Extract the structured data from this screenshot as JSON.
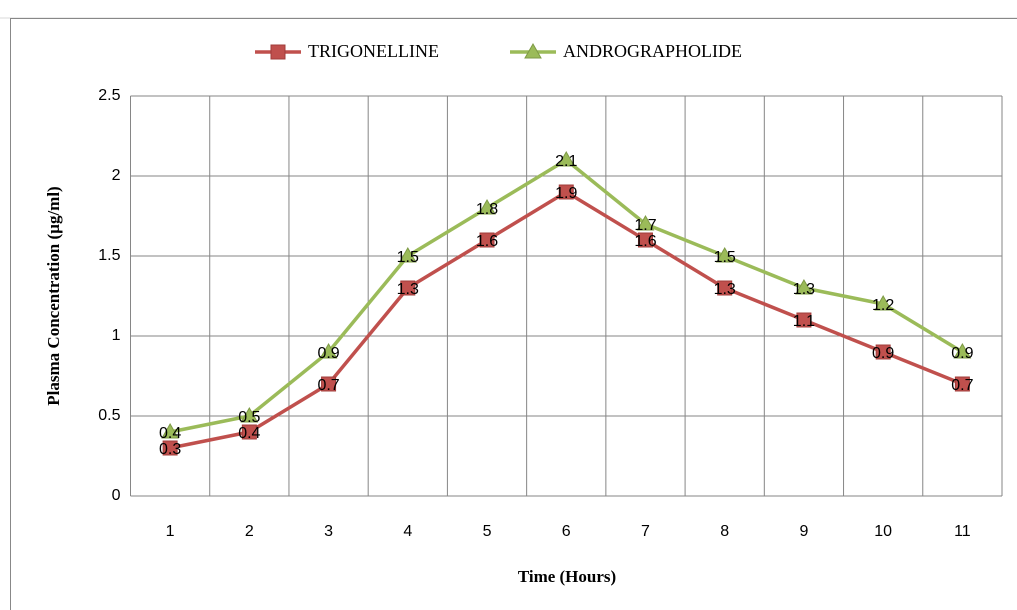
{
  "chart_data": {
    "type": "line",
    "x_label": "Time (Hours)",
    "y_label": "Plasma Concentration (µg/ml)",
    "categories": [
      "1",
      "2",
      "3",
      "4",
      "5",
      "6",
      "7",
      "8",
      "9",
      "10",
      "11"
    ],
    "series": [
      {
        "name": "TRIGONELLINE",
        "color": "#c0504d",
        "marker": "square",
        "values": [
          0.3,
          0.4,
          0.7,
          1.3,
          1.6,
          1.9,
          1.6,
          1.3,
          1.1,
          0.9,
          0.7
        ]
      },
      {
        "name": "ANDROGRAPHOLIDE",
        "color": "#9bbb59",
        "marker": "triangle",
        "values": [
          0.4,
          0.5,
          0.9,
          1.5,
          1.8,
          2.1,
          1.7,
          1.5,
          1.3,
          1.2,
          0.9
        ]
      }
    ],
    "ylim": [
      0,
      2.5
    ],
    "yticks": [
      0,
      0.5,
      1,
      1.5,
      2,
      2.5
    ],
    "grid": true,
    "legend": "top",
    "data_labels": true
  }
}
